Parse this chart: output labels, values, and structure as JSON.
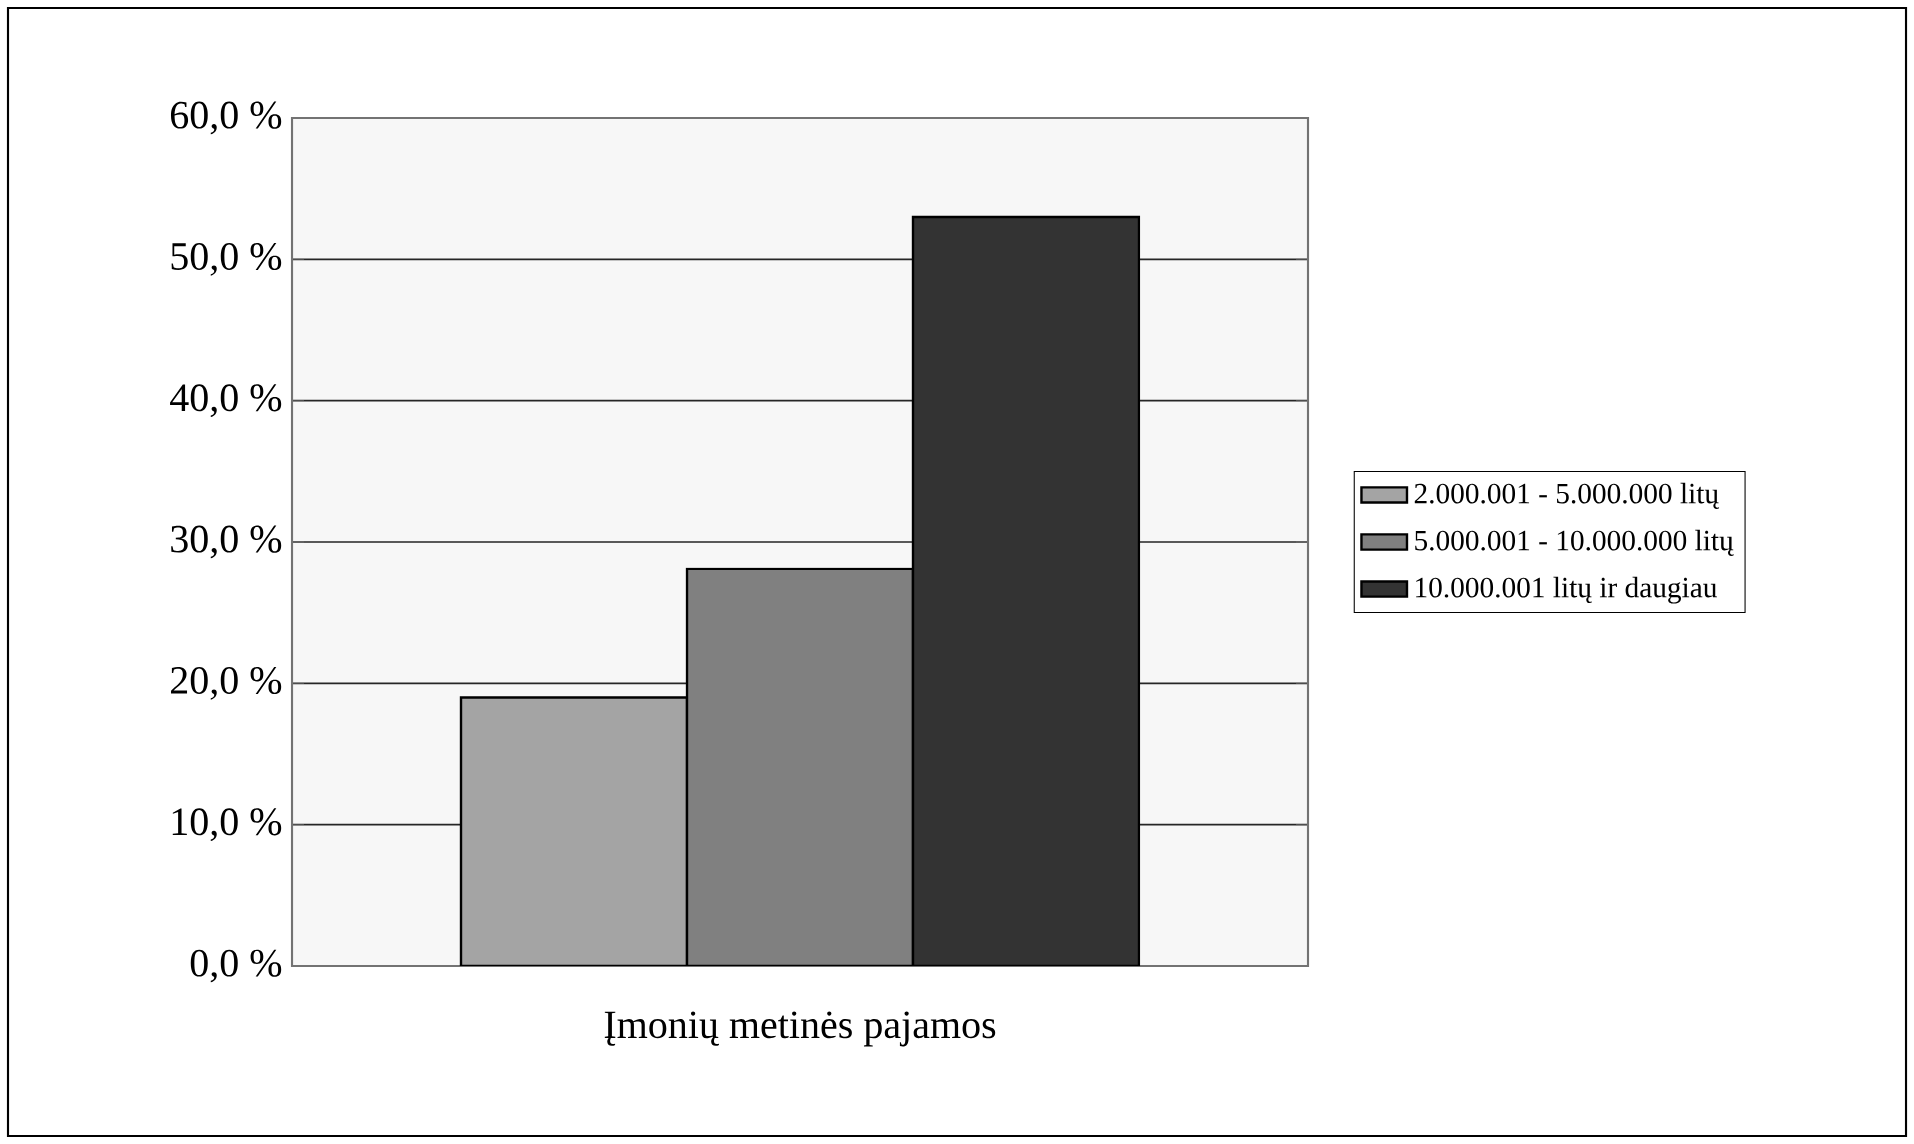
{
  "chart_data": {
    "type": "bar",
    "categories": [
      "Įmonių metinės pajamos"
    ],
    "series": [
      {
        "name": "2.000.001 - 5.000.000 litų",
        "color": "#a4a4a4",
        "values": [
          19.0
        ]
      },
      {
        "name": "5.000.001 - 10.000.000 litų",
        "color": "#808080",
        "values": [
          28.1
        ]
      },
      {
        "name": "10.000.001 litų ir daugiau",
        "color": "#333333",
        "values": [
          53.0
        ]
      }
    ],
    "ylim": [
      0,
      60
    ],
    "yticks": [
      {
        "value": 0,
        "label": "0,0 %"
      },
      {
        "value": 10,
        "label": "10,0 %"
      },
      {
        "value": 20,
        "label": "20,0 %"
      },
      {
        "value": 30,
        "label": "30,0 %"
      },
      {
        "value": 40,
        "label": "40,0 %"
      },
      {
        "value": 50,
        "label": "50,0 %"
      },
      {
        "value": 60,
        "label": "60,0 %"
      }
    ],
    "grid": "y",
    "legend": "right"
  }
}
